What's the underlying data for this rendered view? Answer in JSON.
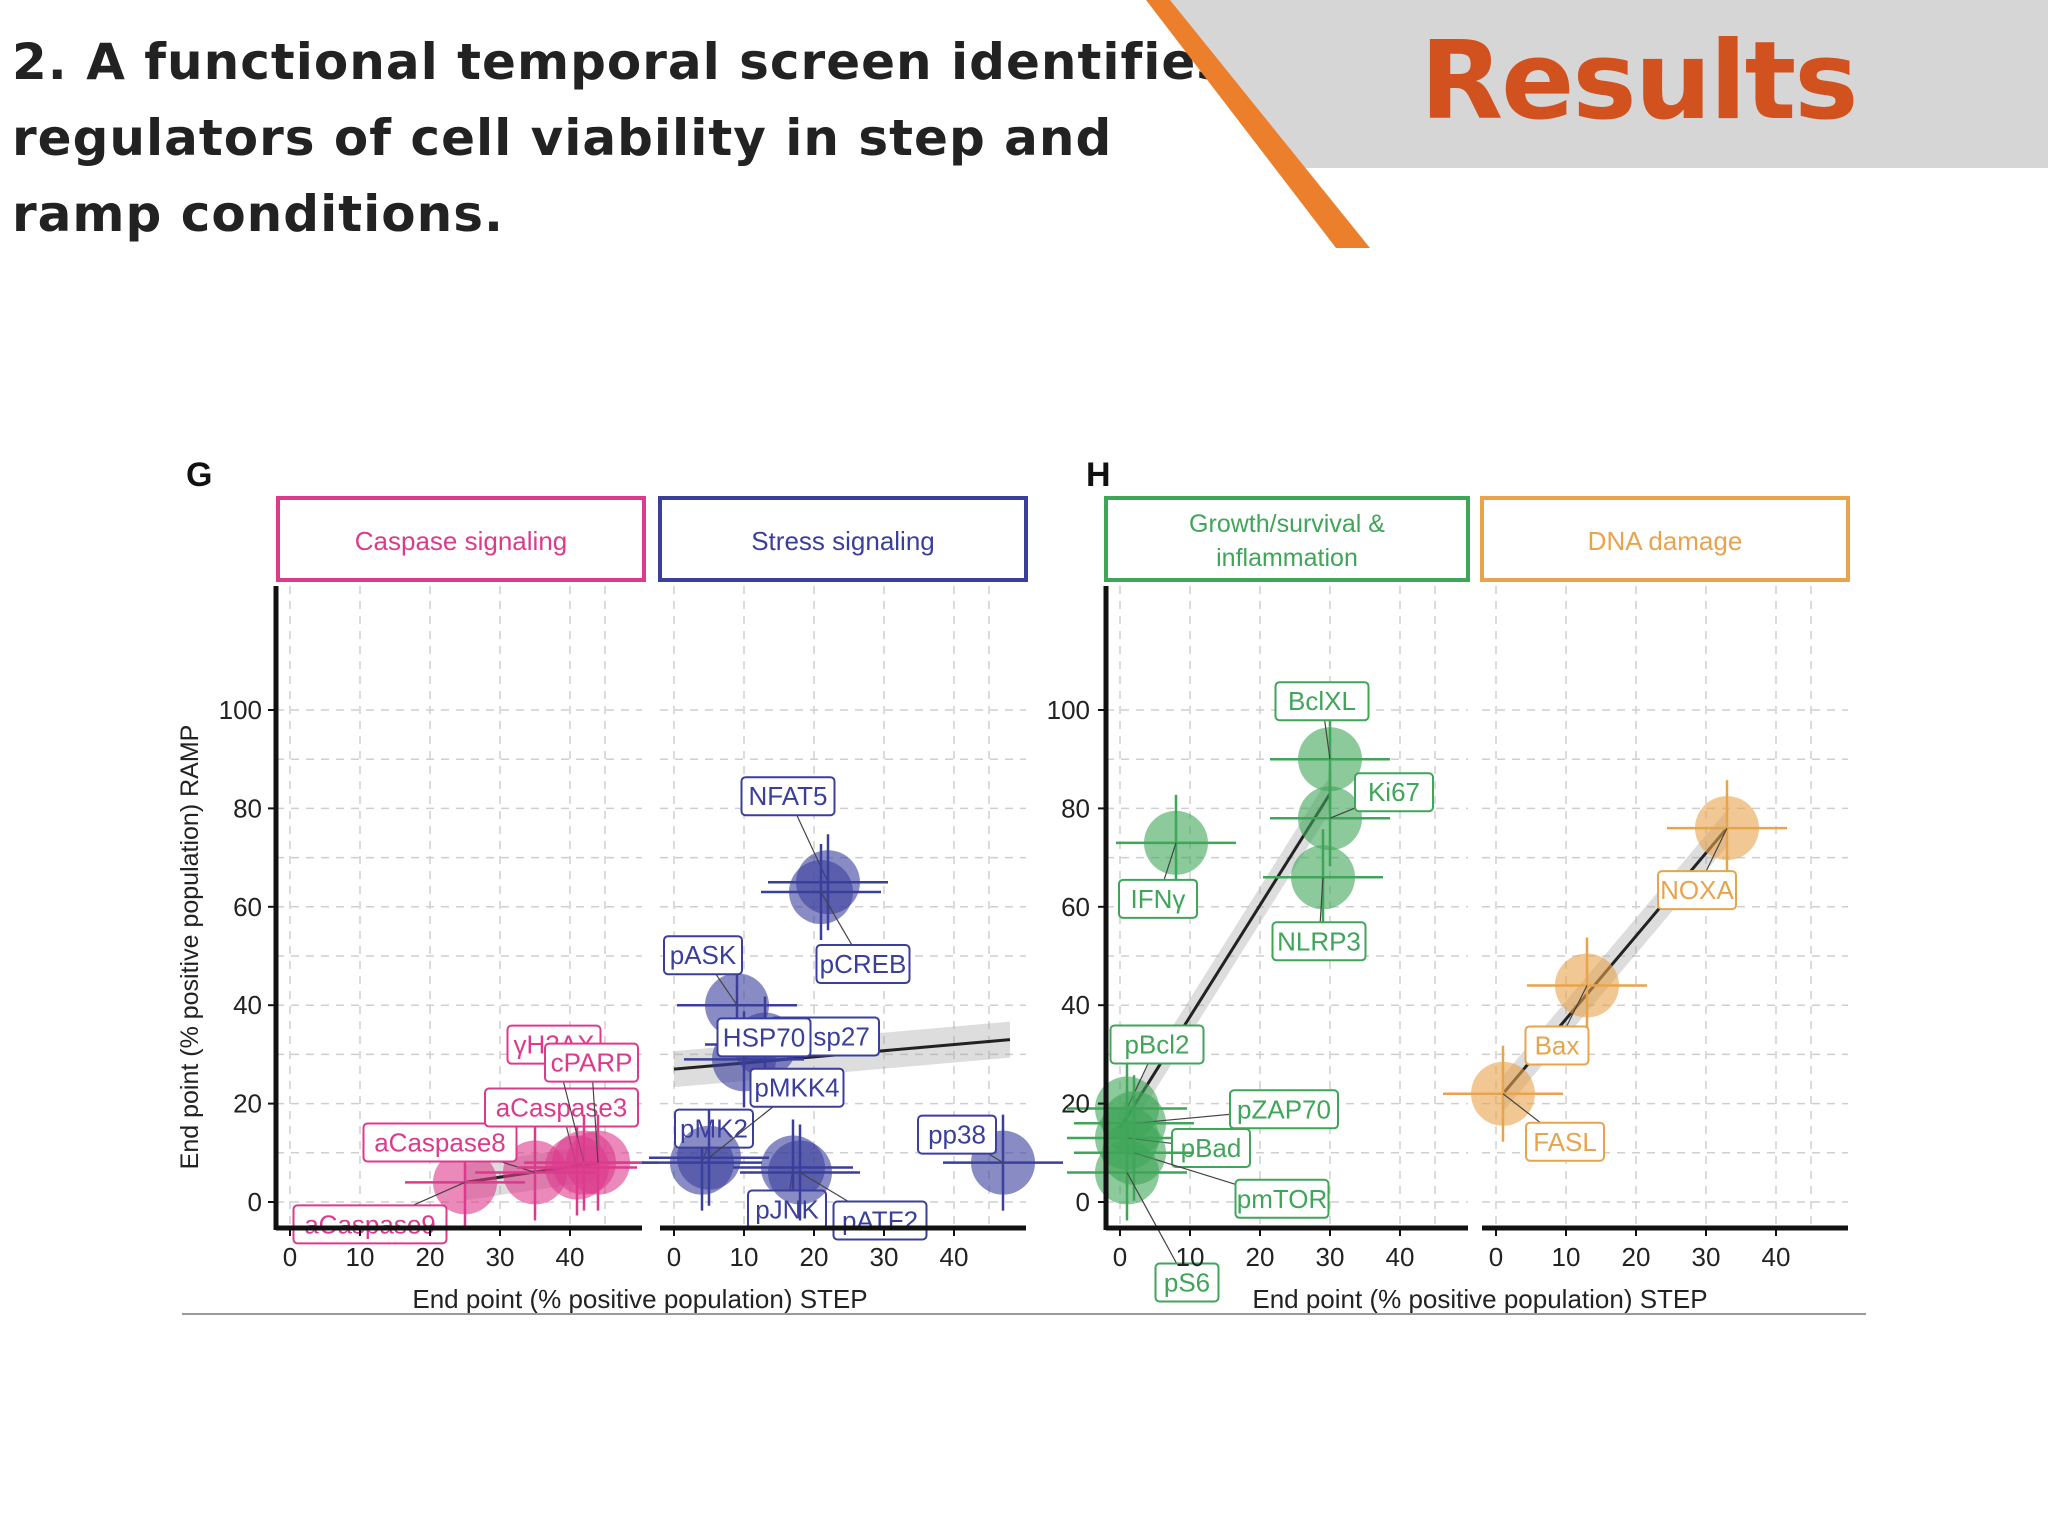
{
  "slide": {
    "title": "2. A functional temporal screen identifies regulators of cell viability in step and ramp conditions.",
    "section": "Results",
    "colors": {
      "section_text": "#d2521f",
      "banner_gray": "#d6d6d6",
      "banner_stripe": "#ec7f2c"
    }
  },
  "chart_data": [
    {
      "type": "scatter",
      "panel_label": "G",
      "ylabel": "End point (% positive population) RAMP",
      "xlabel": "End point (% positive population) STEP",
      "ylim": [
        0,
        100
      ],
      "yticks": [
        0,
        20,
        40,
        60,
        80,
        100
      ],
      "xticks": [
        0,
        10,
        20,
        30,
        40
      ],
      "grid": true,
      "facets": [
        {
          "title": "Caspase signaling",
          "color": "#dc3b8c",
          "points": [
            {
              "label": "aCaspase9",
              "x": 25,
              "y": 4
            },
            {
              "label": "aCaspase8",
              "x": 35,
              "y": 6
            },
            {
              "label": "aCaspase3",
              "x": 41,
              "y": 7
            },
            {
              "label": "γH2AX",
              "x": 42,
              "y": 8
            },
            {
              "label": "cPARP",
              "x": 44,
              "y": 8
            }
          ],
          "trend": [
            [
              25,
              4
            ],
            [
              44,
              8
            ]
          ]
        },
        {
          "title": "Stress signaling",
          "color": "#3b3f9c",
          "points": [
            {
              "label": "NFAT5",
              "x": 22,
              "y": 65
            },
            {
              "label": "pCREB",
              "x": 21,
              "y": 63
            },
            {
              "label": "pASK",
              "x": 9,
              "y": 40
            },
            {
              "label": "pHsp27",
              "x": 13,
              "y": 32
            },
            {
              "label": "HSP70",
              "x": 10,
              "y": 29
            },
            {
              "label": "pMK2",
              "x": 4,
              "y": 8
            },
            {
              "label": "pMKK4",
              "x": 5,
              "y": 9
            },
            {
              "label": "pJNK",
              "x": 17,
              "y": 7
            },
            {
              "label": "pATF2",
              "x": 18,
              "y": 6
            },
            {
              "label": "pp38",
              "x": 47,
              "y": 8
            }
          ],
          "trend": [
            [
              0,
              27
            ],
            [
              48,
              33
            ]
          ]
        }
      ]
    },
    {
      "type": "scatter",
      "panel_label": "H",
      "ylabel": "",
      "xlabel": "End point (% positive population) STEP",
      "ylim": [
        0,
        100
      ],
      "yticks": [
        0,
        20,
        40,
        60,
        80,
        100
      ],
      "xticks": [
        0,
        10,
        20,
        30,
        40
      ],
      "grid": true,
      "facets": [
        {
          "title": "Growth/survival & inflammation",
          "color": "#3fa559",
          "points": [
            {
              "label": "BclXL",
              "x": 30,
              "y": 90
            },
            {
              "label": "Ki67",
              "x": 30,
              "y": 78
            },
            {
              "label": "IFNγ",
              "x": 8,
              "y": 73
            },
            {
              "label": "NLRP3",
              "x": 29,
              "y": 66
            },
            {
              "label": "pBcl2",
              "x": 1,
              "y": 19
            },
            {
              "label": "pZAP70",
              "x": 2,
              "y": 16
            },
            {
              "label": "pBad",
              "x": 1,
              "y": 13
            },
            {
              "label": "pmTOR",
              "x": 2,
              "y": 10
            },
            {
              "label": "pS6",
              "x": 1,
              "y": 6
            }
          ],
          "trend": [
            [
              0,
              15
            ],
            [
              30,
              83
            ]
          ]
        },
        {
          "title": "DNA damage",
          "color": "#e8a44c",
          "points": [
            {
              "label": "NOXA",
              "x": 33,
              "y": 76
            },
            {
              "label": "Bax",
              "x": 13,
              "y": 44
            },
            {
              "label": "FASL",
              "x": 1,
              "y": 22
            }
          ],
          "trend": [
            [
              1,
              22
            ],
            [
              33,
              76
            ]
          ]
        }
      ]
    }
  ]
}
